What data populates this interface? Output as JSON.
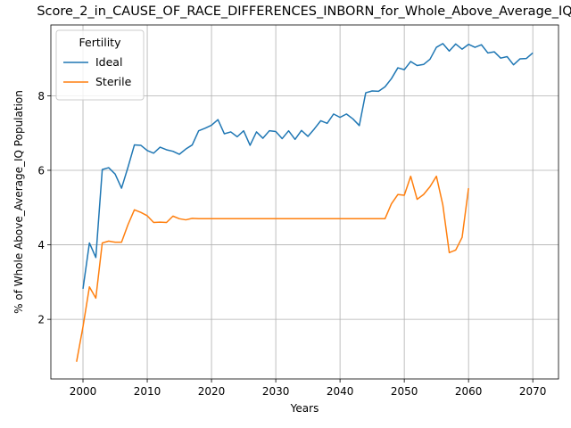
{
  "chart_data": {
    "type": "line",
    "title": "Score_2_in_CAUSE_OF_RACE_DIFFERENCES_INBORN_for_Whole_Above_Average_IQ",
    "xlabel": "Years",
    "ylabel": "% of Whole Above_Average_IQ Population",
    "xlim": [
      1995,
      2074
    ],
    "ylim": [
      0.4,
      9.9
    ],
    "xticks": [
      2000,
      2010,
      2020,
      2030,
      2040,
      2050,
      2060,
      2070
    ],
    "yticks": [
      2,
      4,
      6,
      8
    ],
    "grid": true,
    "legend": {
      "title": "Fertility",
      "placement": "top-left"
    },
    "series": [
      {
        "name": "Ideal",
        "color": "#1f77b4",
        "x": [
          2000,
          2001,
          2002,
          2003,
          2004,
          2005,
          2006,
          2007,
          2008,
          2009,
          2010,
          2011,
          2012,
          2013,
          2014,
          2015,
          2016,
          2017,
          2018,
          2019,
          2020,
          2021,
          2022,
          2023,
          2024,
          2025,
          2026,
          2027,
          2028,
          2029,
          2030,
          2031,
          2032,
          2033,
          2034,
          2035,
          2036,
          2037,
          2038,
          2039,
          2040,
          2041,
          2042,
          2043,
          2044,
          2045,
          2046,
          2047,
          2048,
          2049,
          2050,
          2051,
          2052,
          2053,
          2054,
          2055,
          2056,
          2057,
          2058,
          2059,
          2060,
          2061,
          2062,
          2063,
          2064,
          2065,
          2066,
          2067,
          2068,
          2069,
          2070
        ],
        "values": [
          2.82,
          4.05,
          3.66,
          6.02,
          6.07,
          5.9,
          5.52,
          6.08,
          6.68,
          6.67,
          6.53,
          6.46,
          6.62,
          6.55,
          6.51,
          6.43,
          6.57,
          6.68,
          7.06,
          7.13,
          7.21,
          7.36,
          6.98,
          7.03,
          6.9,
          7.06,
          6.67,
          7.03,
          6.86,
          7.06,
          7.04,
          6.85,
          7.06,
          6.83,
          7.07,
          6.91,
          7.11,
          7.33,
          7.26,
          7.51,
          7.42,
          7.51,
          7.38,
          7.2,
          8.08,
          8.13,
          8.12,
          8.24,
          8.46,
          8.75,
          8.7,
          8.92,
          8.81,
          8.84,
          8.98,
          9.3,
          9.4,
          9.2,
          9.39,
          9.25,
          9.38,
          9.3,
          9.37,
          9.15,
          9.18,
          9.01,
          9.05,
          8.83,
          8.99,
          9.0,
          9.15
        ]
      },
      {
        "name": "Sterile",
        "color": "#ff7f0e",
        "x": [
          1999,
          2000,
          2001,
          2002,
          2003,
          2004,
          2005,
          2006,
          2007,
          2008,
          2009,
          2010,
          2011,
          2012,
          2013,
          2014,
          2015,
          2016,
          2017,
          2018,
          2019,
          2020,
          2021,
          2022,
          2023,
          2024,
          2025,
          2026,
          2027,
          2028,
          2029,
          2030,
          2031,
          2032,
          2033,
          2034,
          2035,
          2036,
          2037,
          2038,
          2039,
          2040,
          2041,
          2042,
          2043,
          2044,
          2045,
          2046,
          2047,
          2048,
          2049,
          2050,
          2051,
          2052,
          2053,
          2054,
          2055,
          2056,
          2057,
          2058,
          2059,
          2060
        ],
        "values": [
          0.86,
          1.8,
          2.87,
          2.57,
          4.05,
          4.1,
          4.07,
          4.07,
          4.54,
          4.94,
          4.87,
          4.78,
          4.6,
          4.61,
          4.6,
          4.77,
          4.7,
          4.67,
          4.71,
          4.7,
          4.7,
          4.7,
          4.7,
          4.7,
          4.7,
          4.7,
          4.7,
          4.7,
          4.7,
          4.7,
          4.7,
          4.7,
          4.7,
          4.7,
          4.7,
          4.7,
          4.7,
          4.7,
          4.7,
          4.7,
          4.7,
          4.7,
          4.7,
          4.7,
          4.7,
          4.7,
          4.7,
          4.7,
          4.7,
          5.1,
          5.35,
          5.33,
          5.84,
          5.22,
          5.35,
          5.56,
          5.84,
          5.07,
          3.79,
          3.86,
          4.2,
          5.52
        ]
      }
    ]
  }
}
